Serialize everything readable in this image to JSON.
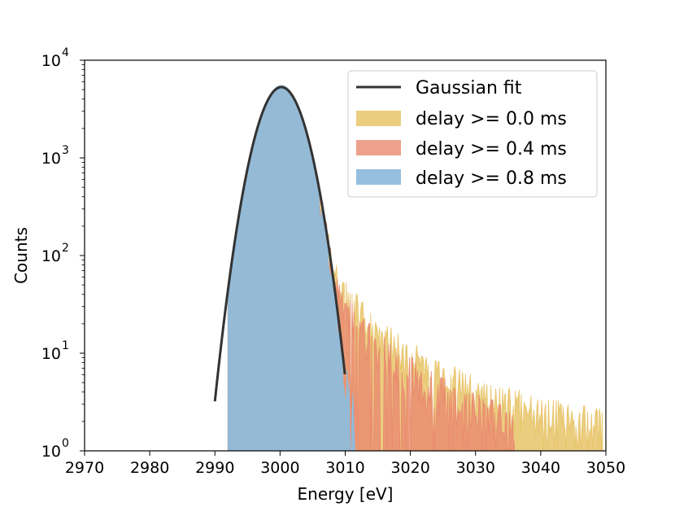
{
  "chart_data": {
    "type": "area",
    "xlabel": "Energy [eV]",
    "ylabel": "Counts",
    "xlim": [
      2970,
      3050
    ],
    "ylim": [
      1,
      10000
    ],
    "yscale": "log",
    "x_ticks": [
      "2970",
      "2980",
      "2990",
      "3000",
      "3010",
      "3020",
      "3030",
      "3040",
      "3050"
    ],
    "y_ticks": [
      {
        "base": "10",
        "exp": "0"
      },
      {
        "base": "10",
        "exp": "1"
      },
      {
        "base": "10",
        "exp": "2"
      },
      {
        "base": "10",
        "exp": "3"
      },
      {
        "base": "10",
        "exp": "4"
      }
    ],
    "legend_position": "top-right",
    "gaussian_fit": {
      "name": "Gaussian fit",
      "color": "#333333",
      "amplitude": 5300,
      "mean": 3000.2,
      "sigma": 2.65
    },
    "series": [
      {
        "name": "delay >= 0.0 ms",
        "color": "#e8c468",
        "opacity": 0.85,
        "tail": [
          [
            3006,
            120
          ],
          [
            3008,
            75
          ],
          [
            3010,
            45
          ],
          [
            3012,
            30
          ],
          [
            3014,
            22
          ],
          [
            3016,
            16
          ],
          [
            3018,
            12
          ],
          [
            3020,
            10
          ],
          [
            3022,
            8
          ],
          [
            3024,
            7
          ],
          [
            3026,
            6
          ],
          [
            3028,
            5
          ],
          [
            3030,
            4.5
          ],
          [
            3032,
            4
          ],
          [
            3034,
            3.5
          ],
          [
            3036,
            3.2
          ],
          [
            3038,
            3
          ],
          [
            3040,
            2.8
          ],
          [
            3042,
            2.5
          ],
          [
            3044,
            2.3
          ],
          [
            3046,
            2.2
          ],
          [
            3048,
            2.1
          ],
          [
            3049.5,
            2
          ]
        ]
      },
      {
        "name": "delay >= 0.4 ms",
        "color": "#ea8a70",
        "opacity": 0.8,
        "tail": [
          [
            3006,
            95
          ],
          [
            3008,
            55
          ],
          [
            3010,
            32
          ],
          [
            3012,
            22
          ],
          [
            3014,
            15
          ],
          [
            3016,
            11
          ],
          [
            3018,
            8
          ],
          [
            3020,
            7
          ],
          [
            3022,
            5.5
          ],
          [
            3024,
            4.5
          ],
          [
            3026,
            4
          ],
          [
            3028,
            3.5
          ],
          [
            3030,
            3
          ],
          [
            3032,
            2.6
          ],
          [
            3034,
            2.2
          ],
          [
            3036,
            1.8
          ]
        ]
      },
      {
        "name": "delay >= 0.8 ms",
        "color": "#8fbcdb",
        "opacity": 0.95,
        "tail": [
          [
            3006,
            60
          ],
          [
            3008,
            20
          ],
          [
            3010,
            6
          ],
          [
            3011.5,
            2.5
          ]
        ]
      }
    ]
  }
}
